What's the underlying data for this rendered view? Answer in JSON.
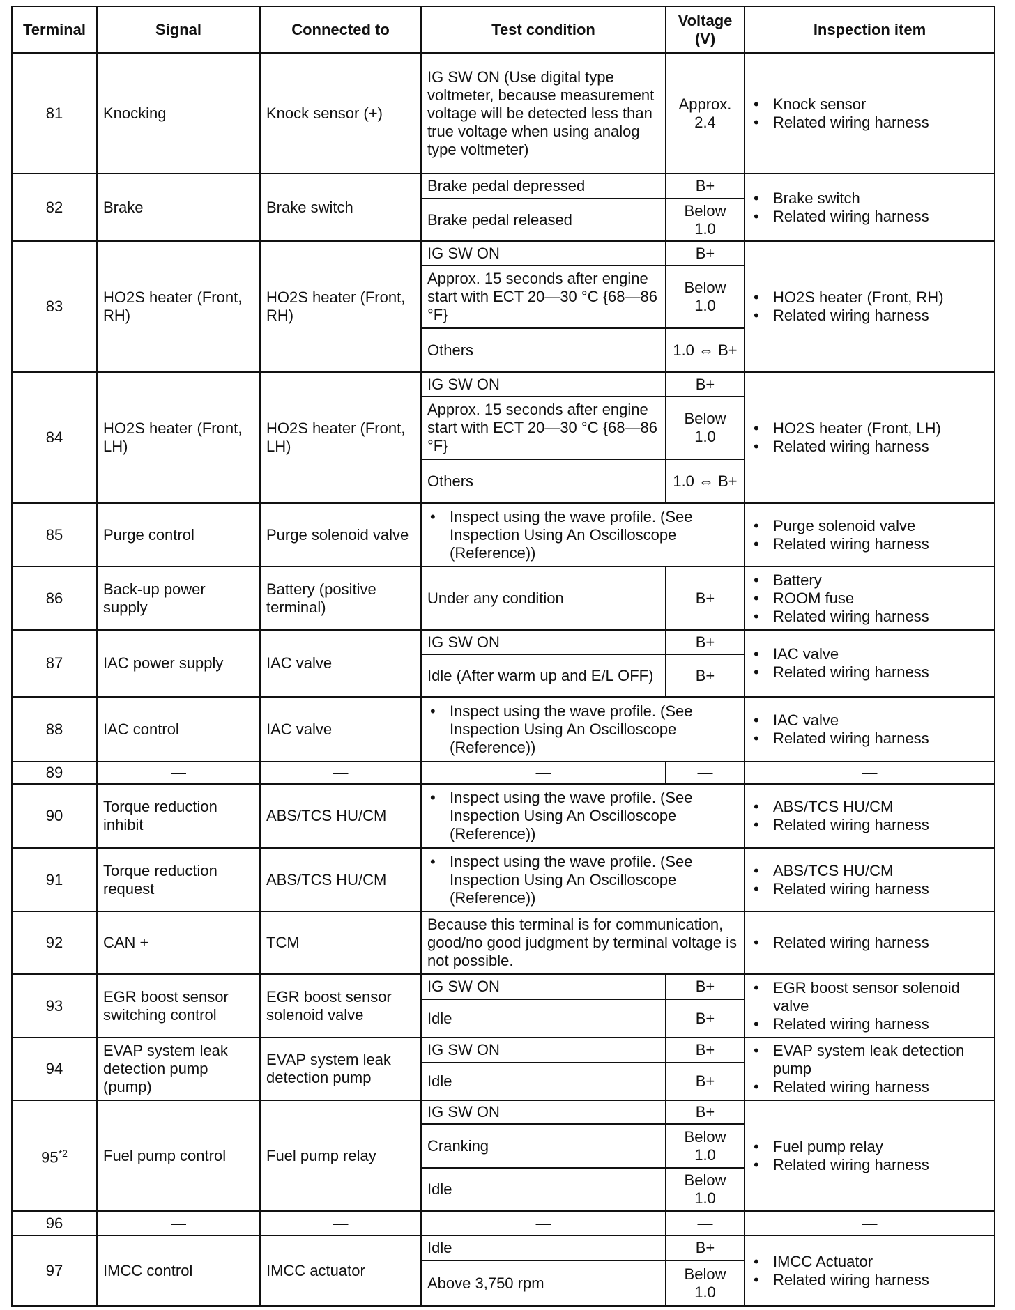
{
  "headers": [
    "Terminal",
    "Signal",
    "Connected to",
    "Test condition",
    "Voltage (V)",
    "Inspection item"
  ],
  "rows": [
    {
      "terminal": "81",
      "signal": "Knocking",
      "connected": "Knock sensor (+)",
      "conditions": [
        {
          "test": "IG SW ON (Use digital type voltmeter, because measurement voltage will be detected less than true voltage when using analog type voltmeter)",
          "voltage": "Approx. 2.4"
        }
      ],
      "inspection": [
        "Knock sensor",
        "Related wiring harness"
      ]
    },
    {
      "terminal": "82",
      "signal": "Brake",
      "connected": "Brake switch",
      "conditions": [
        {
          "test": "Brake pedal depressed",
          "voltage": "B+"
        },
        {
          "test": "Brake pedal released",
          "voltage": "Below 1.0"
        }
      ],
      "inspection": [
        "Brake switch",
        "Related wiring harness"
      ]
    },
    {
      "terminal": "83",
      "signal": "HO2S heater (Front, RH)",
      "connected": "HO2S heater (Front, RH)",
      "conditions": [
        {
          "test": "IG SW ON",
          "voltage": "B+"
        },
        {
          "test": "Approx. 15 seconds after engine start with ECT 20—30 °C {68—86 °F}",
          "voltage": "Below 1.0"
        },
        {
          "test": "Others",
          "voltage": "1.0 ⇔ B+"
        }
      ],
      "inspection": [
        "HO2S heater (Front, RH)",
        "Related wiring harness"
      ]
    },
    {
      "terminal": "84",
      "signal": "HO2S heater (Front, LH)",
      "connected": "HO2S heater (Front, LH)",
      "conditions": [
        {
          "test": "IG SW ON",
          "voltage": "B+"
        },
        {
          "test": "Approx. 15 seconds after engine start with ECT 20—30 °C {68—86 °F}",
          "voltage": "Below 1.0"
        },
        {
          "test": "Others",
          "voltage": "1.0 ⇔ B+"
        }
      ],
      "inspection": [
        "HO2S heater (Front, LH)",
        "Related wiring harness"
      ]
    },
    {
      "terminal": "85",
      "signal": "Purge control",
      "connected": "Purge solenoid valve",
      "note": "Inspect using the wave profile. (See Inspection Using An Oscilloscope (Reference))",
      "inspection": [
        "Purge solenoid valve",
        "Related wiring harness"
      ]
    },
    {
      "terminal": "86",
      "signal": "Back-up power supply",
      "connected": "Battery (positive terminal)",
      "conditions": [
        {
          "test": "Under any condition",
          "voltage": "B+"
        }
      ],
      "inspection": [
        "Battery",
        "ROOM fuse",
        "Related wiring harness"
      ]
    },
    {
      "terminal": "87",
      "signal": "IAC power supply",
      "connected": "IAC valve",
      "conditions": [
        {
          "test": "IG SW ON",
          "voltage": "B+"
        },
        {
          "test": "Idle (After warm up and E/L OFF)",
          "voltage": "B+"
        }
      ],
      "inspection": [
        "IAC valve",
        "Related wiring harness"
      ]
    },
    {
      "terminal": "88",
      "signal": "IAC control",
      "connected": "IAC valve",
      "note": "Inspect using the wave profile. (See Inspection Using An Oscilloscope (Reference))",
      "inspection": [
        "IAC valve",
        "Related wiring harness"
      ]
    },
    {
      "terminal": "89",
      "signal": "—",
      "connected": "—",
      "conditions": [
        {
          "test": "—",
          "voltage": "—"
        }
      ],
      "inspection_dash": "—"
    },
    {
      "terminal": "90",
      "signal": "Torque reduction inhibit",
      "connected": "ABS/TCS HU/CM",
      "note": "Inspect using the wave profile. (See Inspection Using An Oscilloscope (Reference))",
      "inspection": [
        "ABS/TCS HU/CM",
        "Related wiring harness"
      ]
    },
    {
      "terminal": "91",
      "signal": "Torque reduction request",
      "connected": "ABS/TCS HU/CM",
      "note": "Inspect using the wave profile. (See Inspection Using An Oscilloscope (Reference))",
      "inspection": [
        "ABS/TCS HU/CM",
        "Related wiring harness"
      ]
    },
    {
      "terminal": "92",
      "signal": "CAN +",
      "connected": "TCM",
      "plain_note": "Because this terminal is for communication, good/no good judgment by terminal voltage is not possible.",
      "inspection": [
        "Related wiring harness"
      ]
    },
    {
      "terminal": "93",
      "signal": "EGR boost sensor switching control",
      "connected": "EGR boost sensor solenoid valve",
      "conditions": [
        {
          "test": "IG SW ON",
          "voltage": "B+"
        },
        {
          "test": "Idle",
          "voltage": "B+"
        }
      ],
      "inspection": [
        "EGR boost sensor solenoid valve",
        "Related wiring harness"
      ]
    },
    {
      "terminal": "94",
      "signal": "EVAP system leak detection pump (pump)",
      "connected": "EVAP system leak detection pump",
      "conditions": [
        {
          "test": "IG SW ON",
          "voltage": "B+"
        },
        {
          "test": "Idle",
          "voltage": "B+"
        }
      ],
      "inspection": [
        "EVAP system leak detection pump",
        "Related wiring harness"
      ]
    },
    {
      "terminal": "95",
      "terminal_note": "*2",
      "signal": "Fuel pump control",
      "connected": "Fuel pump relay",
      "conditions": [
        {
          "test": "IG SW ON",
          "voltage": "B+"
        },
        {
          "test": "Cranking",
          "voltage": "Below 1.0"
        },
        {
          "test": "Idle",
          "voltage": "Below 1.0"
        }
      ],
      "inspection": [
        "Fuel pump relay",
        "Related wiring harness"
      ]
    },
    {
      "terminal": "96",
      "signal": "—",
      "connected": "—",
      "conditions": [
        {
          "test": "—",
          "voltage": "—"
        }
      ],
      "inspection_dash": "—"
    },
    {
      "terminal": "97",
      "signal": "IMCC control",
      "connected": "IMCC actuator",
      "conditions": [
        {
          "test": "Idle",
          "voltage": "B+"
        },
        {
          "test": "Above 3,750 rpm",
          "voltage": "Below 1.0"
        }
      ],
      "inspection": [
        "IMCC Actuator",
        "Related wiring harness"
      ]
    }
  ]
}
